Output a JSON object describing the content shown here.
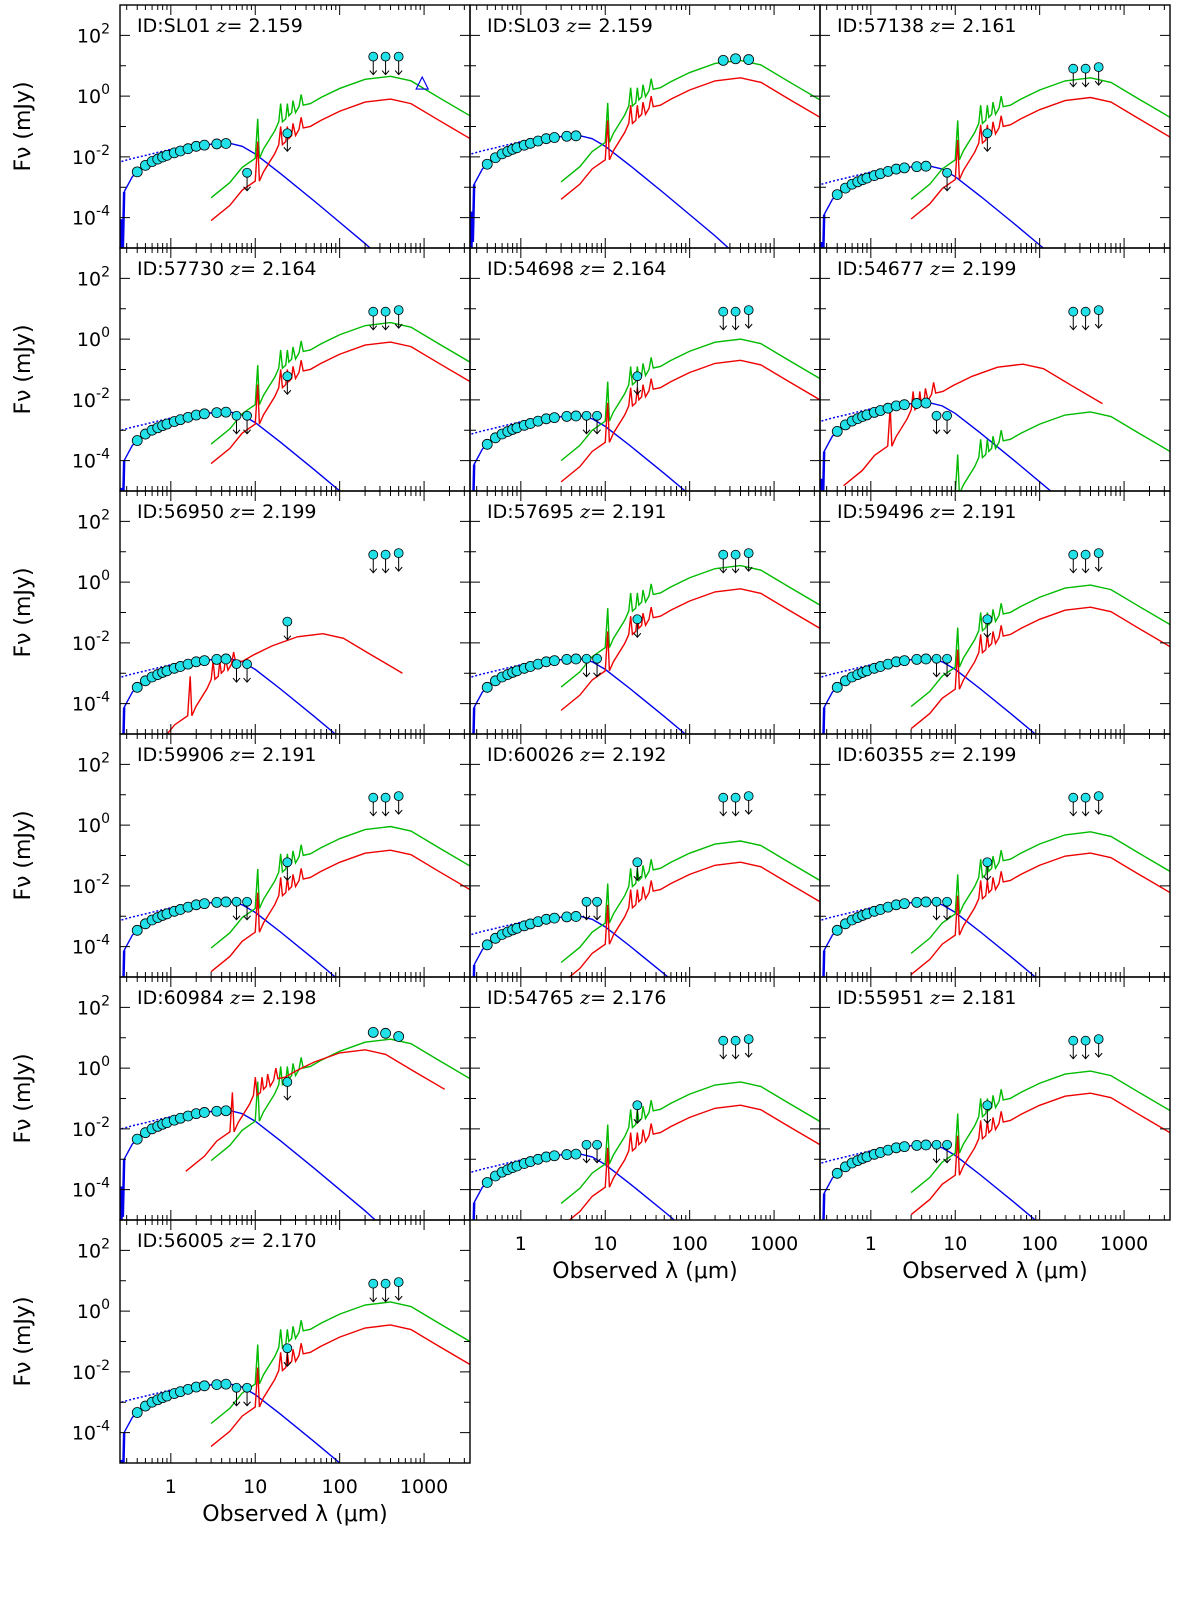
{
  "chart_data": {
    "type": "line",
    "xlabel": "Observed λ (μm)",
    "ylabel": "Fν (mJy)",
    "x_scale": "log",
    "y_scale": "log",
    "xlim": [
      0.25,
      3500
    ],
    "ylim": [
      1e-05,
      1000
    ],
    "x_ticks": [
      {
        "value": 1,
        "label": "1"
      },
      {
        "value": 10,
        "label": "10"
      },
      {
        "value": 100,
        "label": "100"
      },
      {
        "value": 1000,
        "label": "1000"
      }
    ],
    "y_ticks": [
      {
        "value": 100,
        "base": "10",
        "exp": "2"
      },
      {
        "value": 1,
        "base": "10",
        "exp": "0"
      },
      {
        "value": 0.01,
        "base": "10",
        "exp": "-2"
      },
      {
        "value": 0.0001,
        "base": "10",
        "exp": "-4"
      }
    ],
    "series_colors": {
      "stellar": "#0000ee",
      "green": "#00bb00",
      "red": "#ee0000",
      "points": "#22e0e8"
    },
    "panels": [
      {
        "id": "ID:SL01",
        "z_prefix": "z",
        "z": "= 2.159",
        "row": 0,
        "col": 0,
        "stellar_peak": 0.028,
        "green_peak": 4.5,
        "red_peak": 0.8,
        "red_shift": 0,
        "upper_limits": [
          {
            "x": 250,
            "y": 20
          },
          {
            "x": 350,
            "y": 20
          },
          {
            "x": 500,
            "y": 20
          },
          {
            "x": 8,
            "y": 0.003
          },
          {
            "x": 24,
            "y": 0.06
          }
        ],
        "detections": [],
        "triangle": {
          "x": 950,
          "y": 2.5
        }
      },
      {
        "id": "ID:SL03",
        "z_prefix": "z",
        "z": "= 2.159",
        "row": 0,
        "col": 1,
        "stellar_peak": 0.05,
        "green_peak": 15,
        "red_peak": 4,
        "red_shift": 0,
        "upper_limits": [],
        "detections": [
          {
            "x": 250,
            "y": 15
          },
          {
            "x": 350,
            "y": 17
          },
          {
            "x": 500,
            "y": 16
          }
        ]
      },
      {
        "id": "ID:57138",
        "z_prefix": "z",
        "z": "= 2.161",
        "row": 0,
        "col": 2,
        "stellar_peak": 0.005,
        "green_peak": 4,
        "red_peak": 0.9,
        "red_shift": 0,
        "upper_limits": [
          {
            "x": 250,
            "y": 8
          },
          {
            "x": 350,
            "y": 8
          },
          {
            "x": 500,
            "y": 9
          },
          {
            "x": 8,
            "y": 0.003
          },
          {
            "x": 24,
            "y": 0.06
          }
        ],
        "detections": []
      },
      {
        "id": "ID:57730",
        "z_prefix": "z",
        "z": "= 2.164",
        "row": 1,
        "col": 0,
        "stellar_peak": 0.004,
        "green_peak": 3.5,
        "red_peak": 0.8,
        "red_shift": 0,
        "upper_limits": [
          {
            "x": 250,
            "y": 8
          },
          {
            "x": 350,
            "y": 8
          },
          {
            "x": 500,
            "y": 9
          },
          {
            "x": 6,
            "y": 0.003
          },
          {
            "x": 8,
            "y": 0.003
          },
          {
            "x": 24,
            "y": 0.06
          }
        ],
        "detections": []
      },
      {
        "id": "ID:54698",
        "z_prefix": "z",
        "z": "= 2.164",
        "row": 1,
        "col": 1,
        "stellar_peak": 0.003,
        "green_peak": 1.0,
        "red_peak": 0.2,
        "red_shift": 0,
        "upper_limits": [
          {
            "x": 250,
            "y": 8
          },
          {
            "x": 350,
            "y": 8
          },
          {
            "x": 500,
            "y": 9
          },
          {
            "x": 6,
            "y": 0.003
          },
          {
            "x": 8,
            "y": 0.003
          },
          {
            "x": 24,
            "y": 0.06
          }
        ],
        "detections": []
      },
      {
        "id": "ID:54677",
        "z_prefix": "z",
        "z": "= 2.199",
        "row": 1,
        "col": 2,
        "stellar_peak": 0.008,
        "green_peak": 0.004,
        "red_peak": 0.15,
        "red_shift": -0.8,
        "upper_limits": [
          {
            "x": 250,
            "y": 8
          },
          {
            "x": 350,
            "y": 8
          },
          {
            "x": 500,
            "y": 9
          },
          {
            "x": 6,
            "y": 0.003
          },
          {
            "x": 8,
            "y": 0.003
          }
        ],
        "detections": []
      },
      {
        "id": "ID:56950",
        "z_prefix": "z",
        "z": "= 2.199",
        "row": 2,
        "col": 0,
        "stellar_peak": 0.003,
        "green_peak": 0,
        "red_peak": 0.02,
        "red_shift": -0.8,
        "upper_limits": [
          {
            "x": 250,
            "y": 8
          },
          {
            "x": 350,
            "y": 8
          },
          {
            "x": 500,
            "y": 9
          },
          {
            "x": 6,
            "y": 0.002
          },
          {
            "x": 8,
            "y": 0.002
          },
          {
            "x": 24,
            "y": 0.05
          }
        ],
        "detections": []
      },
      {
        "id": "ID:57695",
        "z_prefix": "z",
        "z": "= 2.191",
        "row": 2,
        "col": 1,
        "stellar_peak": 0.003,
        "green_peak": 3.5,
        "red_peak": 0.6,
        "red_shift": 0,
        "upper_limits": [
          {
            "x": 250,
            "y": 8
          },
          {
            "x": 350,
            "y": 8
          },
          {
            "x": 500,
            "y": 9
          },
          {
            "x": 6,
            "y": 0.003
          },
          {
            "x": 8,
            "y": 0.003
          },
          {
            "x": 24,
            "y": 0.06
          }
        ],
        "detections": []
      },
      {
        "id": "ID:59496",
        "z_prefix": "z",
        "z": "= 2.191",
        "row": 2,
        "col": 2,
        "stellar_peak": 0.003,
        "green_peak": 0.8,
        "red_peak": 0.15,
        "red_shift": 0,
        "upper_limits": [
          {
            "x": 250,
            "y": 8
          },
          {
            "x": 350,
            "y": 8
          },
          {
            "x": 500,
            "y": 9
          },
          {
            "x": 6,
            "y": 0.003
          },
          {
            "x": 8,
            "y": 0.003
          },
          {
            "x": 24,
            "y": 0.06
          }
        ],
        "detections": []
      },
      {
        "id": "ID:59906",
        "z_prefix": "z",
        "z": "= 2.191",
        "row": 3,
        "col": 0,
        "stellar_peak": 0.003,
        "green_peak": 0.9,
        "red_peak": 0.15,
        "red_shift": 0,
        "upper_limits": [
          {
            "x": 250,
            "y": 8
          },
          {
            "x": 350,
            "y": 8
          },
          {
            "x": 500,
            "y": 9
          },
          {
            "x": 6,
            "y": 0.003
          },
          {
            "x": 8,
            "y": 0.003
          },
          {
            "x": 24,
            "y": 0.06
          }
        ],
        "detections": []
      },
      {
        "id": "ID:60026",
        "z_prefix": "z",
        "z": "= 2.192",
        "row": 3,
        "col": 1,
        "stellar_peak": 0.001,
        "green_peak": 0.3,
        "red_peak": 0.06,
        "red_shift": 0,
        "upper_limits": [
          {
            "x": 250,
            "y": 8
          },
          {
            "x": 350,
            "y": 8
          },
          {
            "x": 500,
            "y": 9
          },
          {
            "x": 6,
            "y": 0.003
          },
          {
            "x": 8,
            "y": 0.003
          },
          {
            "x": 24,
            "y": 0.06
          }
        ],
        "detections": []
      },
      {
        "id": "ID:60355",
        "z_prefix": "z",
        "z": "= 2.199",
        "row": 3,
        "col": 2,
        "stellar_peak": 0.003,
        "green_peak": 0.6,
        "red_peak": 0.12,
        "red_shift": 0,
        "upper_limits": [
          {
            "x": 250,
            "y": 8
          },
          {
            "x": 350,
            "y": 8
          },
          {
            "x": 500,
            "y": 9
          },
          {
            "x": 6,
            "y": 0.003
          },
          {
            "x": 8,
            "y": 0.003
          },
          {
            "x": 24,
            "y": 0.06
          }
        ],
        "detections": []
      },
      {
        "id": "ID:60984",
        "z_prefix": "z",
        "z": "= 2.198",
        "row": 4,
        "col": 0,
        "stellar_peak": 0.04,
        "green_peak": 9,
        "red_peak": 4,
        "red_shift": -0.3,
        "upper_limits": [
          {
            "x": 24,
            "y": 0.35
          }
        ],
        "detections": [
          {
            "x": 250,
            "y": 15
          },
          {
            "x": 350,
            "y": 14
          },
          {
            "x": 500,
            "y": 11
          }
        ]
      },
      {
        "id": "ID:54765",
        "z_prefix": "z",
        "z": "= 2.176",
        "row": 4,
        "col": 1,
        "stellar_peak": 0.0015,
        "green_peak": 0.35,
        "red_peak": 0.06,
        "red_shift": 0,
        "upper_limits": [
          {
            "x": 250,
            "y": 8
          },
          {
            "x": 350,
            "y": 8
          },
          {
            "x": 500,
            "y": 9
          },
          {
            "x": 6,
            "y": 0.003
          },
          {
            "x": 8,
            "y": 0.003
          },
          {
            "x": 24,
            "y": 0.06
          }
        ],
        "detections": []
      },
      {
        "id": "ID:55951",
        "z_prefix": "z",
        "z": "= 2.181",
        "row": 4,
        "col": 2,
        "stellar_peak": 0.003,
        "green_peak": 0.8,
        "red_peak": 0.15,
        "red_shift": 0,
        "upper_limits": [
          {
            "x": 250,
            "y": 8
          },
          {
            "x": 350,
            "y": 8
          },
          {
            "x": 500,
            "y": 9
          },
          {
            "x": 6,
            "y": 0.003
          },
          {
            "x": 8,
            "y": 0.003
          },
          {
            "x": 24,
            "y": 0.06
          }
        ],
        "detections": []
      },
      {
        "id": "ID:56005",
        "z_prefix": "z",
        "z": "= 2.170",
        "row": 5,
        "col": 0,
        "stellar_peak": 0.004,
        "green_peak": 2.0,
        "red_peak": 0.35,
        "red_shift": 0,
        "upper_limits": [
          {
            "x": 250,
            "y": 8
          },
          {
            "x": 350,
            "y": 8
          },
          {
            "x": 500,
            "y": 9
          },
          {
            "x": 6,
            "y": 0.003
          },
          {
            "x": 8,
            "y": 0.003
          },
          {
            "x": 24,
            "y": 0.06
          }
        ],
        "detections": []
      }
    ]
  }
}
